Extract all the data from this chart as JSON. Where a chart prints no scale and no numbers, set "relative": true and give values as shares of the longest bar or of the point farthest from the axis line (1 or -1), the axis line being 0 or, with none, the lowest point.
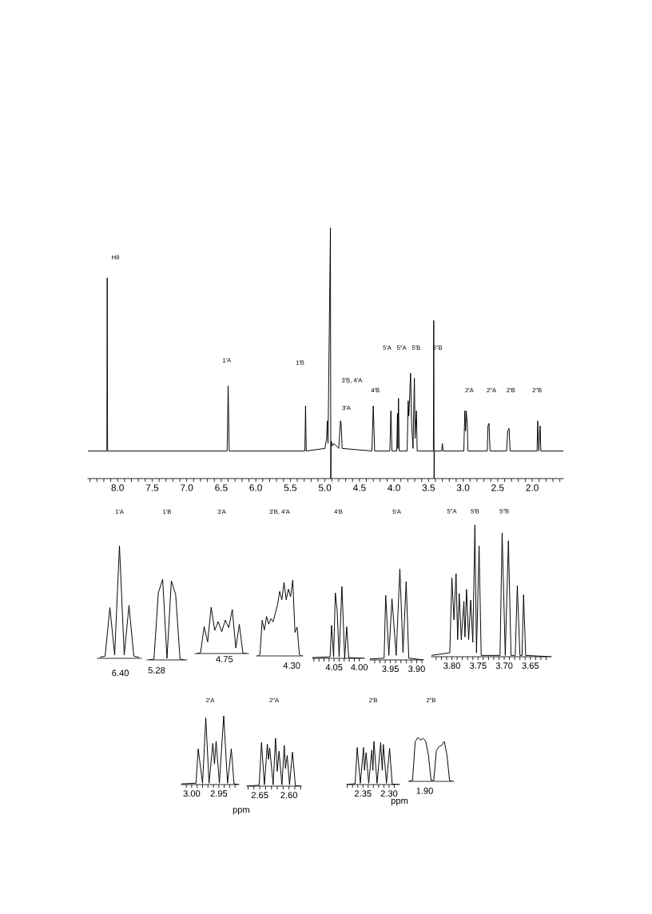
{
  "chart_data": [
    {
      "type": "line",
      "relative": true,
      "tick_labels": "x",
      "xlim": [
        8.43,
        1.55
      ],
      "xticks": [
        {
          "value": 8.4,
          "label": null
        },
        {
          "value": 8.3,
          "label": null
        },
        {
          "value": 8.2,
          "label": null
        },
        {
          "value": 8.1,
          "label": null
        },
        {
          "value": 8.0,
          "label": "8.0"
        },
        {
          "value": 7.9,
          "label": null
        },
        {
          "value": 7.8,
          "label": null
        },
        {
          "value": 7.7,
          "label": null
        },
        {
          "value": 7.6,
          "label": null
        },
        {
          "value": 7.5,
          "label": "7.5"
        },
        {
          "value": 7.4,
          "label": null
        },
        {
          "value": 7.3,
          "label": null
        },
        {
          "value": 7.2,
          "label": null
        },
        {
          "value": 7.1,
          "label": null
        },
        {
          "value": 7.0,
          "label": "7.0"
        },
        {
          "value": 6.9,
          "label": null
        },
        {
          "value": 6.8,
          "label": null
        },
        {
          "value": 6.7,
          "label": null
        },
        {
          "value": 6.6,
          "label": null
        },
        {
          "value": 6.5,
          "label": "6.5"
        },
        {
          "value": 6.4,
          "label": null
        },
        {
          "value": 6.3,
          "label": null
        },
        {
          "value": 6.2,
          "label": null
        },
        {
          "value": 6.1,
          "label": null
        },
        {
          "value": 6.0,
          "label": "6.0"
        },
        {
          "value": 5.9,
          "label": null
        },
        {
          "value": 5.8,
          "label": null
        },
        {
          "value": 5.7,
          "label": null
        },
        {
          "value": 5.6,
          "label": null
        },
        {
          "value": 5.5,
          "label": "5.5"
        },
        {
          "value": 5.4,
          "label": null
        },
        {
          "value": 5.3,
          "label": null
        },
        {
          "value": 5.2,
          "label": null
        },
        {
          "value": 5.1,
          "label": null
        },
        {
          "value": 5.0,
          "label": "5.0"
        },
        {
          "value": 4.9,
          "label": null
        },
        {
          "value": 4.8,
          "label": null
        },
        {
          "value": 4.7,
          "label": null
        },
        {
          "value": 4.6,
          "label": null
        },
        {
          "value": 4.5,
          "label": "4.5"
        },
        {
          "value": 4.4,
          "label": null
        },
        {
          "value": 4.3,
          "label": null
        },
        {
          "value": 4.2,
          "label": null
        },
        {
          "value": 4.1,
          "label": null
        },
        {
          "value": 4.0,
          "label": "4.0"
        },
        {
          "value": 3.9,
          "label": null
        },
        {
          "value": 3.8,
          "label": null
        },
        {
          "value": 3.7,
          "label": null
        },
        {
          "value": 3.6,
          "label": null
        },
        {
          "value": 3.5,
          "label": "3.5"
        },
        {
          "value": 3.4,
          "label": null
        },
        {
          "value": 3.3,
          "label": null
        },
        {
          "value": 3.2,
          "label": null
        },
        {
          "value": 3.1,
          "label": null
        },
        {
          "value": 3.0,
          "label": "3.0"
        },
        {
          "value": 2.9,
          "label": null
        },
        {
          "value": 2.8,
          "label": null
        },
        {
          "value": 2.7,
          "label": null
        },
        {
          "value": 2.6,
          "label": null
        },
        {
          "value": 2.5,
          "label": "2.5"
        },
        {
          "value": 2.4,
          "label": null
        },
        {
          "value": 2.3,
          "label": null
        },
        {
          "value": 2.2,
          "label": null
        },
        {
          "value": 2.1,
          "label": null
        },
        {
          "value": 2.0,
          "label": "2.0"
        },
        {
          "value": 1.9,
          "label": null
        },
        {
          "value": 1.8,
          "label": null
        },
        {
          "value": 1.7,
          "label": null
        },
        {
          "value": 1.6,
          "label": null
        }
      ],
      "x": [
        8.43,
        8.155,
        8.15,
        8.145,
        6.415,
        6.4,
        6.385,
        5.29,
        5.28,
        5.27,
        5.0,
        4.975,
        4.965,
        4.955,
        4.92,
        4.915,
        4.91,
        4.89,
        4.87,
        4.8,
        4.775,
        4.765,
        4.75,
        4.32,
        4.3,
        4.28,
        4.06,
        4.045,
        4.03,
        3.96,
        3.95,
        3.945,
        3.935,
        3.925,
        3.81,
        3.795,
        3.785,
        3.76,
        3.745,
        3.725,
        3.705,
        3.695,
        3.675,
        3.665,
        3.43,
        3.425,
        3.42,
        3.415,
        3.31,
        3.3,
        3.29,
        2.99,
        2.975,
        2.965,
        2.955,
        2.94,
        2.93,
        2.65,
        2.64,
        2.625,
        2.61,
        2.37,
        2.355,
        2.335,
        2.32,
        1.93,
        1.92,
        1.905,
        1.885,
        1.875,
        1.55
      ],
      "series": [
        {
          "color": "#000000",
          "values": [
            0.11,
            0.11,
            0.8,
            0.11,
            0.11,
            0.37,
            0.11,
            0.11,
            0.29,
            0.11,
            0.12,
            0.16,
            0.23,
            0.14,
            1.0,
            0.0,
            0.15,
            0.13,
            0.14,
            0.12,
            0.23,
            0.22,
            0.12,
            0.11,
            0.29,
            0.11,
            0.11,
            0.27,
            0.11,
            0.11,
            0.26,
            0.12,
            0.32,
            0.11,
            0.11,
            0.31,
            0.25,
            0.42,
            0.22,
            0.12,
            0.4,
            0.16,
            0.27,
            0.11,
            0.11,
            0.63,
            0.0,
            0.11,
            0.11,
            0.14,
            0.11,
            0.11,
            0.27,
            0.19,
            0.27,
            0.22,
            0.11,
            0.11,
            0.21,
            0.22,
            0.11,
            0.11,
            0.19,
            0.2,
            0.11,
            0.11,
            0.23,
            0.11,
            0.21,
            0.11,
            0.11
          ]
        }
      ],
      "annotations": [
        "H8",
        "1′A",
        "1′B",
        "3′A",
        "3′B, 4′A",
        "4′B",
        "5′A",
        "5″A",
        "5′B",
        "5″B",
        "2′A",
        "2″A",
        "2′B",
        "2″B"
      ]
    },
    {
      "type": "line",
      "relative": true,
      "title": "1′A",
      "categories": [
        null,
        null,
        null,
        null,
        null,
        null,
        null,
        null,
        null
      ],
      "series": [
        {
          "color": "#000000",
          "values": [
            0.01,
            0.02,
            0.45,
            0.03,
            1.0,
            0.03,
            0.47,
            0.02,
            0.01
          ]
        }
      ],
      "annotations": [
        "6.40"
      ]
    },
    {
      "type": "line",
      "relative": true,
      "title": "1′B",
      "categories": [
        null,
        null,
        null,
        null,
        null,
        null,
        null,
        null,
        null
      ],
      "series": [
        {
          "color": "#000000",
          "values": [
            0,
            0.01,
            0.83,
            1.0,
            0.02,
            0.98,
            0.81,
            0.01,
            0
          ]
        }
      ],
      "annotations": [
        "5.28"
      ]
    },
    {
      "type": "line",
      "relative": true,
      "title": "3′A",
      "categories": [
        null,
        null,
        null,
        null,
        null,
        null,
        null,
        null,
        null,
        null,
        null,
        null,
        null,
        null,
        null
      ],
      "series": [
        {
          "color": "#000000",
          "values": [
            0,
            0.02,
            0.58,
            0.25,
            1.0,
            0.5,
            0.69,
            0.47,
            0.72,
            0.56,
            0.95,
            0.12,
            0.63,
            0.01,
            0
          ]
        }
      ],
      "annotations": [
        "4.75"
      ]
    },
    {
      "type": "line",
      "relative": true,
      "title": "3′B, 4′A",
      "categories": [
        null,
        null,
        null,
        null,
        null,
        null,
        null,
        null,
        null,
        null,
        null,
        null,
        null,
        null,
        null,
        null,
        null,
        null,
        null,
        null,
        null
      ],
      "series": [
        {
          "color": "#000000",
          "values": [
            0,
            0.02,
            0.47,
            0.34,
            0.52,
            0.42,
            0.49,
            0.45,
            0.56,
            0.67,
            0.85,
            0.74,
            0.97,
            0.74,
            0.88,
            0.78,
            1.0,
            0.31,
            0.38,
            0.02,
            0
          ]
        }
      ],
      "annotations": [
        "4.30"
      ]
    },
    {
      "type": "line",
      "relative": true,
      "tick_labels": "x",
      "title": "4′B",
      "xlim": [
        4.093,
        3.99
      ],
      "xticks": [
        {
          "value": 4.09,
          "label": null
        },
        {
          "value": 4.08,
          "label": null
        },
        {
          "value": 4.07,
          "label": null
        },
        {
          "value": 4.06,
          "label": null
        },
        {
          "value": 4.05,
          "label": "4.05"
        },
        {
          "value": 4.04,
          "label": null
        },
        {
          "value": 4.03,
          "label": null
        },
        {
          "value": 4.02,
          "label": null
        },
        {
          "value": 4.01,
          "label": null
        },
        {
          "value": 4.0,
          "label": "4.00"
        }
      ],
      "x": [
        4.093,
        4.058,
        4.055,
        4.051,
        4.0475,
        4.044,
        4.04,
        4.0345,
        4.029,
        4.025,
        4.021,
        3.99
      ],
      "series": [
        {
          "color": "#000000",
          "values": [
            0.01,
            0.02,
            0.46,
            0.02,
            0.91,
            0.67,
            0.02,
            1.0,
            0.0,
            0.44,
            0.01,
            0
          ]
        }
      ]
    },
    {
      "type": "line",
      "relative": true,
      "tick_labels": "x",
      "title": "5′A",
      "xlim": [
        3.989,
        3.887
      ],
      "xticks": [
        {
          "value": 3.98,
          "label": null
        },
        {
          "value": 3.97,
          "label": null
        },
        {
          "value": 3.96,
          "label": null
        },
        {
          "value": 3.95,
          "label": "3.95"
        },
        {
          "value": 3.94,
          "label": null
        },
        {
          "value": 3.93,
          "label": null
        },
        {
          "value": 3.92,
          "label": null
        },
        {
          "value": 3.91,
          "label": null
        },
        {
          "value": 3.9,
          "label": "3.90"
        },
        {
          "value": 3.89,
          "label": null
        }
      ],
      "x": [
        3.989,
        3.962,
        3.959,
        3.953,
        3.947,
        3.939,
        3.932,
        3.926,
        3.92,
        3.915,
        3.887
      ],
      "series": [
        {
          "color": "#000000",
          "values": [
            0.01,
            0.02,
            0.71,
            0.05,
            0.67,
            0.05,
            1.0,
            0.08,
            0.86,
            0.02,
            0
          ]
        }
      ]
    },
    {
      "type": "line",
      "relative": true,
      "tick_labels": "x",
      "xlim": [
        3.839,
        3.61
      ],
      "xticks": [
        {
          "value": 3.83,
          "label": null
        },
        {
          "value": 3.82,
          "label": null
        },
        {
          "value": 3.81,
          "label": null
        },
        {
          "value": 3.8,
          "label": "3.80"
        },
        {
          "value": 3.79,
          "label": null
        },
        {
          "value": 3.78,
          "label": null
        },
        {
          "value": 3.77,
          "label": null
        },
        {
          "value": 3.76,
          "label": null
        },
        {
          "value": 3.75,
          "label": "3.75"
        },
        {
          "value": 3.74,
          "label": null
        },
        {
          "value": 3.73,
          "label": null
        },
        {
          "value": 3.72,
          "label": null
        },
        {
          "value": 3.71,
          "label": null
        },
        {
          "value": 3.7,
          "label": "3.70"
        },
        {
          "value": 3.69,
          "label": null
        },
        {
          "value": 3.68,
          "label": null
        },
        {
          "value": 3.67,
          "label": null
        },
        {
          "value": 3.66,
          "label": null
        },
        {
          "value": 3.65,
          "label": "3.65"
        },
        {
          "value": 3.64,
          "label": null
        },
        {
          "value": 3.63,
          "label": null
        },
        {
          "value": 3.62,
          "label": null
        }
      ],
      "x": [
        3.839,
        3.804,
        3.8,
        3.796,
        3.792,
        3.789,
        3.786,
        3.782,
        3.777,
        3.775,
        3.772,
        3.768,
        3.764,
        3.76,
        3.756,
        3.753,
        3.748,
        3.744,
        3.708,
        3.704,
        3.698,
        3.692,
        3.687,
        3.679,
        3.675,
        3.67,
        3.666,
        3.663,
        3.659,
        3.61
      ],
      "series": [
        {
          "color": "#000000",
          "values": [
            0.01,
            0.03,
            0.6,
            0.28,
            0.63,
            0.13,
            0.48,
            0.13,
            0.42,
            0.15,
            0.51,
            0.13,
            0.43,
            0.11,
            1.0,
            0.03,
            0.84,
            0.01,
            0.01,
            0.94,
            0.01,
            0.88,
            0.01,
            0.01,
            0.54,
            0.01,
            0.01,
            0.47,
            0.01,
            0
          ]
        }
      ],
      "annotations": [
        "5″A",
        "5′B",
        "5″B"
      ]
    },
    {
      "type": "line",
      "relative": true,
      "tick_labels": "x",
      "title": "2′A",
      "xlabel": "ppm",
      "xlim": [
        3.019,
        2.913
      ],
      "xticks": [
        {
          "value": 3.01,
          "label": null
        },
        {
          "value": 3.0,
          "label": "3.00"
        },
        {
          "value": 2.99,
          "label": null
        },
        {
          "value": 2.98,
          "label": null
        },
        {
          "value": 2.97,
          "label": null
        },
        {
          "value": 2.96,
          "label": null
        },
        {
          "value": 2.95,
          "label": "2.95"
        },
        {
          "value": 2.94,
          "label": null
        },
        {
          "value": 2.93,
          "label": null
        },
        {
          "value": 2.92,
          "label": null
        }
      ],
      "x": [
        3.019,
        2.992,
        2.988,
        2.98,
        2.974,
        2.968,
        2.961,
        2.958,
        2.955,
        2.949,
        2.941,
        2.934,
        2.927,
        2.922,
        2.913
      ],
      "series": [
        {
          "color": "#000000",
          "values": [
            0.01,
            0.02,
            0.52,
            0.02,
            0.97,
            0.02,
            0.6,
            0.3,
            0.63,
            0.02,
            1.0,
            0.02,
            0.52,
            0.01,
            0
          ]
        }
      ]
    },
    {
      "type": "line",
      "relative": true,
      "tick_labels": "x",
      "title": "2″A",
      "xlim": [
        2.672,
        2.579
      ],
      "xticks": [
        {
          "value": 2.67,
          "label": null
        },
        {
          "value": 2.66,
          "label": null
        },
        {
          "value": 2.65,
          "label": "2.65"
        },
        {
          "value": 2.64,
          "label": null
        },
        {
          "value": 2.63,
          "label": null
        },
        {
          "value": 2.62,
          "label": null
        },
        {
          "value": 2.61,
          "label": null
        },
        {
          "value": 2.6,
          "label": "2.60"
        },
        {
          "value": 2.59,
          "label": null
        },
        {
          "value": 2.58,
          "label": null
        }
      ],
      "x": [
        2.672,
        2.651,
        2.647,
        2.642,
        2.637,
        2.635,
        2.633,
        2.627,
        2.623,
        2.62,
        2.617,
        2.612,
        2.608,
        2.606,
        2.603,
        2.599,
        2.594,
        2.589,
        2.579
      ],
      "series": [
        {
          "color": "#000000",
          "values": [
            0,
            0.02,
            0.91,
            0.03,
            0.88,
            0.56,
            0.8,
            0.03,
            1.0,
            0.31,
            0.73,
            0.03,
            0.85,
            0.37,
            0.64,
            0.03,
            0.71,
            0.01,
            0
          ]
        }
      ]
    },
    {
      "type": "line",
      "relative": true,
      "tick_labels": "x",
      "title": "2′B",
      "xlabel": "ppm",
      "xlim": [
        2.381,
        2.28
      ],
      "xticks": [
        {
          "value": 2.38,
          "label": null
        },
        {
          "value": 2.37,
          "label": null
        },
        {
          "value": 2.36,
          "label": null
        },
        {
          "value": 2.35,
          "label": "2.35"
        },
        {
          "value": 2.34,
          "label": null
        },
        {
          "value": 2.33,
          "label": null
        },
        {
          "value": 2.32,
          "label": null
        },
        {
          "value": 2.31,
          "label": null
        },
        {
          "value": 2.3,
          "label": "2.30"
        },
        {
          "value": 2.29,
          "label": null
        }
      ],
      "x": [
        2.381,
        2.365,
        2.361,
        2.355,
        2.349,
        2.347,
        2.344,
        2.339,
        2.333,
        2.331,
        2.329,
        2.323,
        2.316,
        2.313,
        2.311,
        2.305,
        2.299,
        2.294,
        2.28
      ],
      "series": [
        {
          "color": "#000000",
          "values": [
            0,
            0.02,
            0.86,
            0.03,
            0.86,
            0.33,
            0.74,
            0.03,
            0.8,
            0.33,
            1.0,
            0.03,
            0.97,
            0.33,
            0.93,
            0.03,
            0.84,
            0.01,
            0
          ]
        }
      ]
    },
    {
      "type": "line",
      "relative": true,
      "title": "2″B",
      "categories": [
        null,
        null,
        null,
        null,
        null,
        null,
        null,
        null,
        null,
        null,
        null,
        null,
        null,
        null,
        null,
        null,
        null
      ],
      "series": [
        {
          "color": "#000000",
          "values": [
            0.01,
            0.02,
            0.9,
            1.0,
            0.94,
            0.98,
            0.91,
            0.6,
            0.02,
            0.02,
            0.7,
            0.79,
            0.82,
            0.91,
            0.6,
            0.02,
            0
          ]
        }
      ],
      "annotations": [
        "1.90"
      ]
    }
  ]
}
